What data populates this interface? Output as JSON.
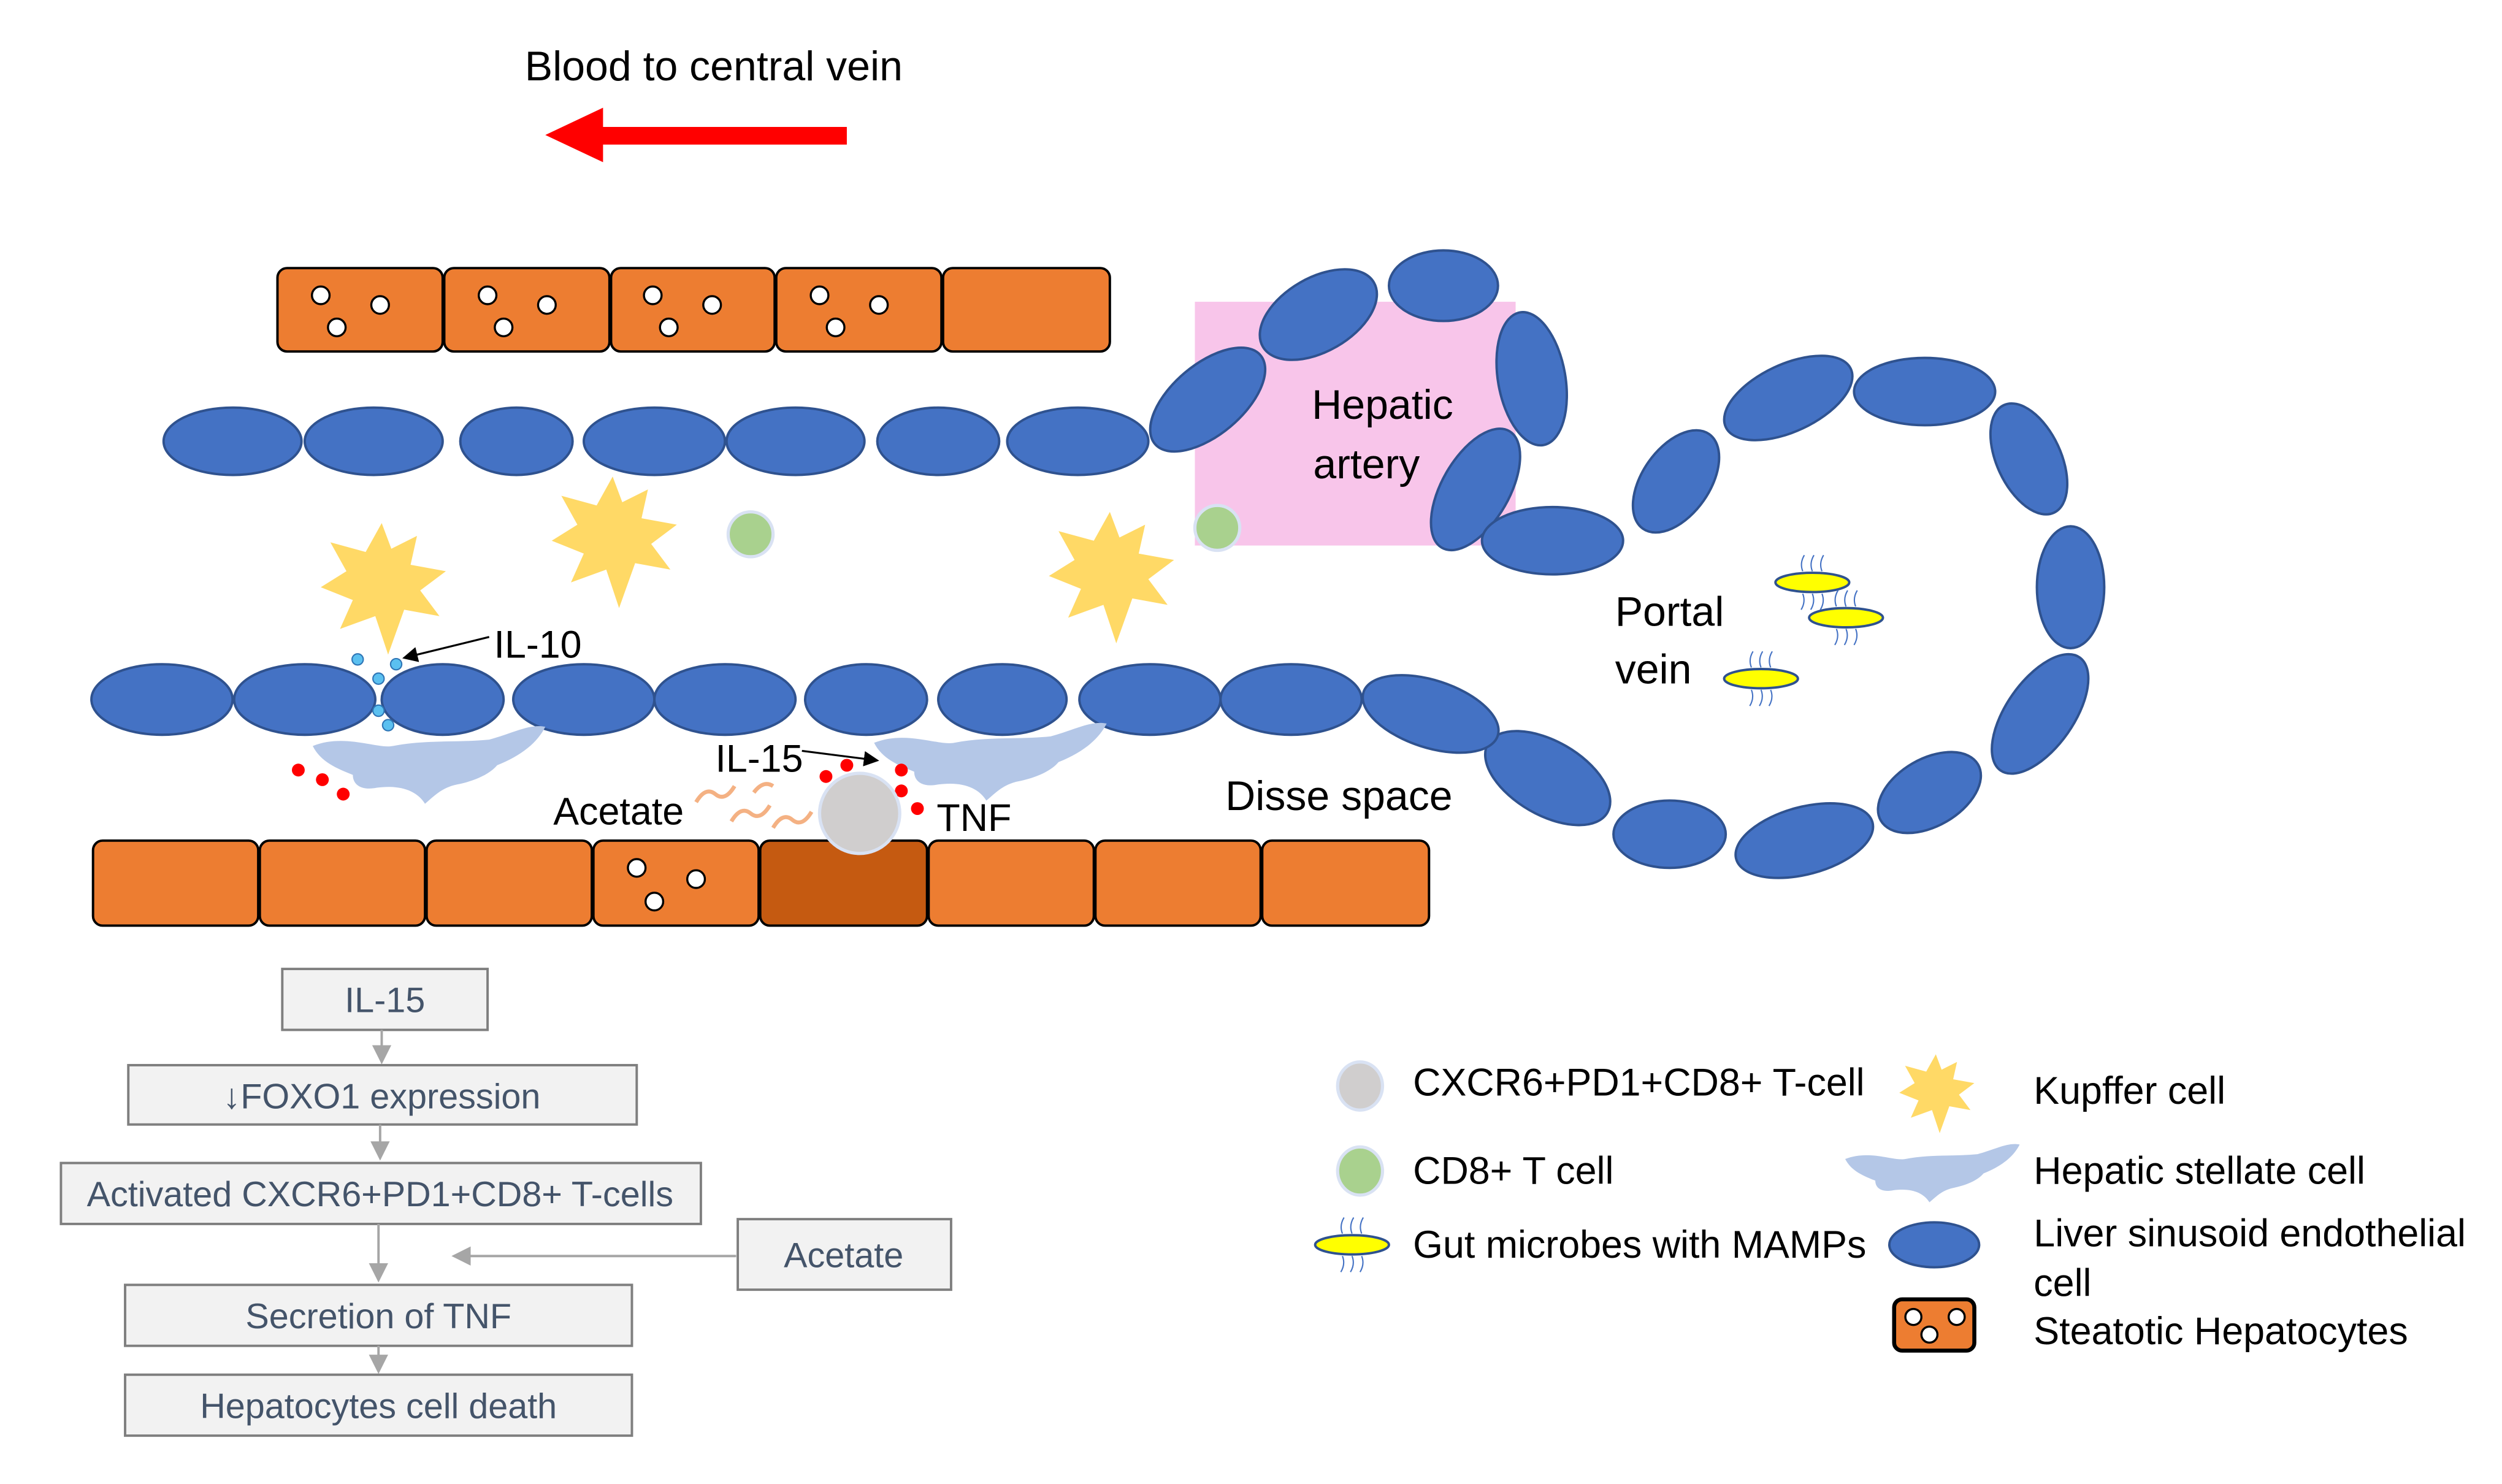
{
  "title": "Blood to central vein",
  "labels": {
    "hepatic_artery": [
      "Hepatic",
      "artery"
    ],
    "portal_vein": [
      "Portal",
      "vein"
    ],
    "il10": "IL-10",
    "il15": "IL-15",
    "acetate": "Acetate",
    "tnf": "TNF",
    "disse_space": "Disse space"
  },
  "flow": {
    "steps": [
      "IL-15",
      "↓FOXO1 expression",
      "Activated CXCR6+PD1+CD8+ T-cells",
      "Secretion of TNF",
      "Hepatocytes cell death"
    ],
    "side_input": "Acetate"
  },
  "legend": [
    {
      "label": "CXCR6+PD1+CD8+ T-cell",
      "icon": "grey-circle"
    },
    {
      "label": "CD8+ T cell",
      "icon": "green-circle"
    },
    {
      "label": "Gut microbes with MAMPs",
      "icon": "yellow-ellipse"
    },
    {
      "label": "Kupffer cell",
      "icon": "yellow-star"
    },
    {
      "label": "Hepatic stellate cell",
      "icon": "light-blue-shape"
    },
    {
      "label": "Liver sinusoid endothelial",
      "label2": "cell",
      "icon": "blue-ellipse"
    },
    {
      "label": "Steatotic Hepatocytes",
      "icon": "orange-cell"
    }
  ],
  "colors": {
    "arrow": "#FF0000",
    "hepatocyte": "#ED7D31",
    "dying_hepatocyte": "#C55A11",
    "endothelial": "#4472C4",
    "kupffer": "#FFD966",
    "stellate": "#B4C7E7",
    "cd8": "#A9D18E",
    "tcell": "#D0CECE",
    "artery": "#F8C5EA"
  }
}
